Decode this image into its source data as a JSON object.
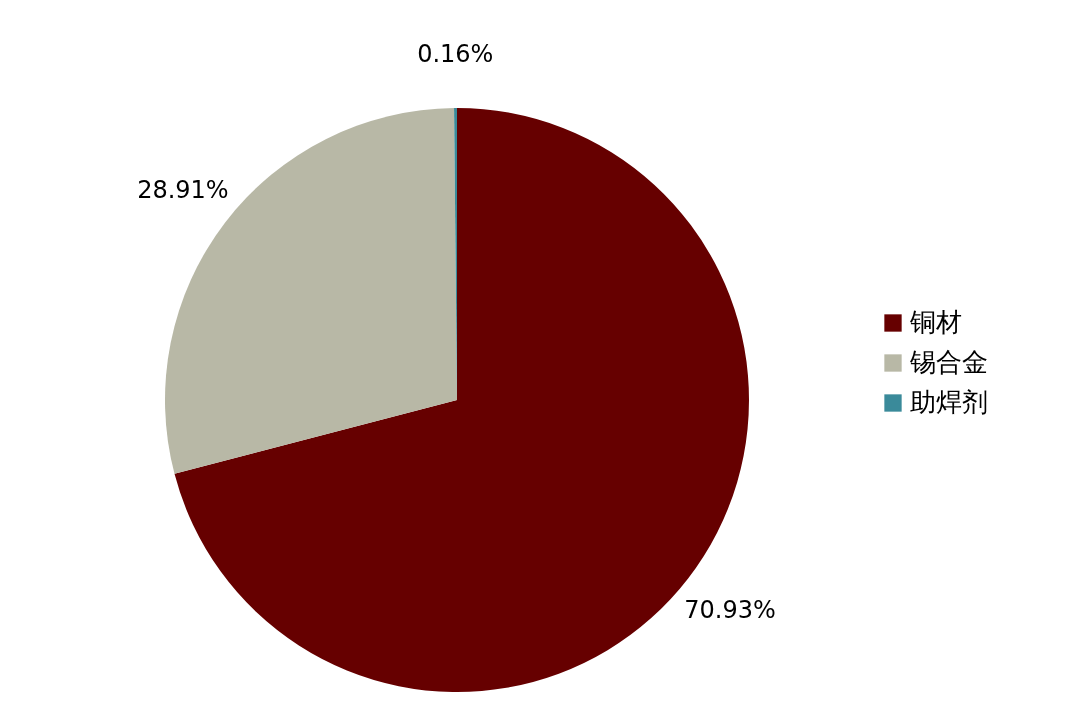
{
  "chart_data": {
    "type": "pie",
    "categories": [
      "铜材",
      "锡合金",
      "助焊剂"
    ],
    "values": [
      70.93,
      28.91,
      0.16
    ],
    "colors": [
      "#660000",
      "#b8b8a6",
      "#3a8a9a"
    ],
    "value_labels": [
      "70.93%",
      "28.91%",
      "0.16%"
    ],
    "legend": "right"
  }
}
